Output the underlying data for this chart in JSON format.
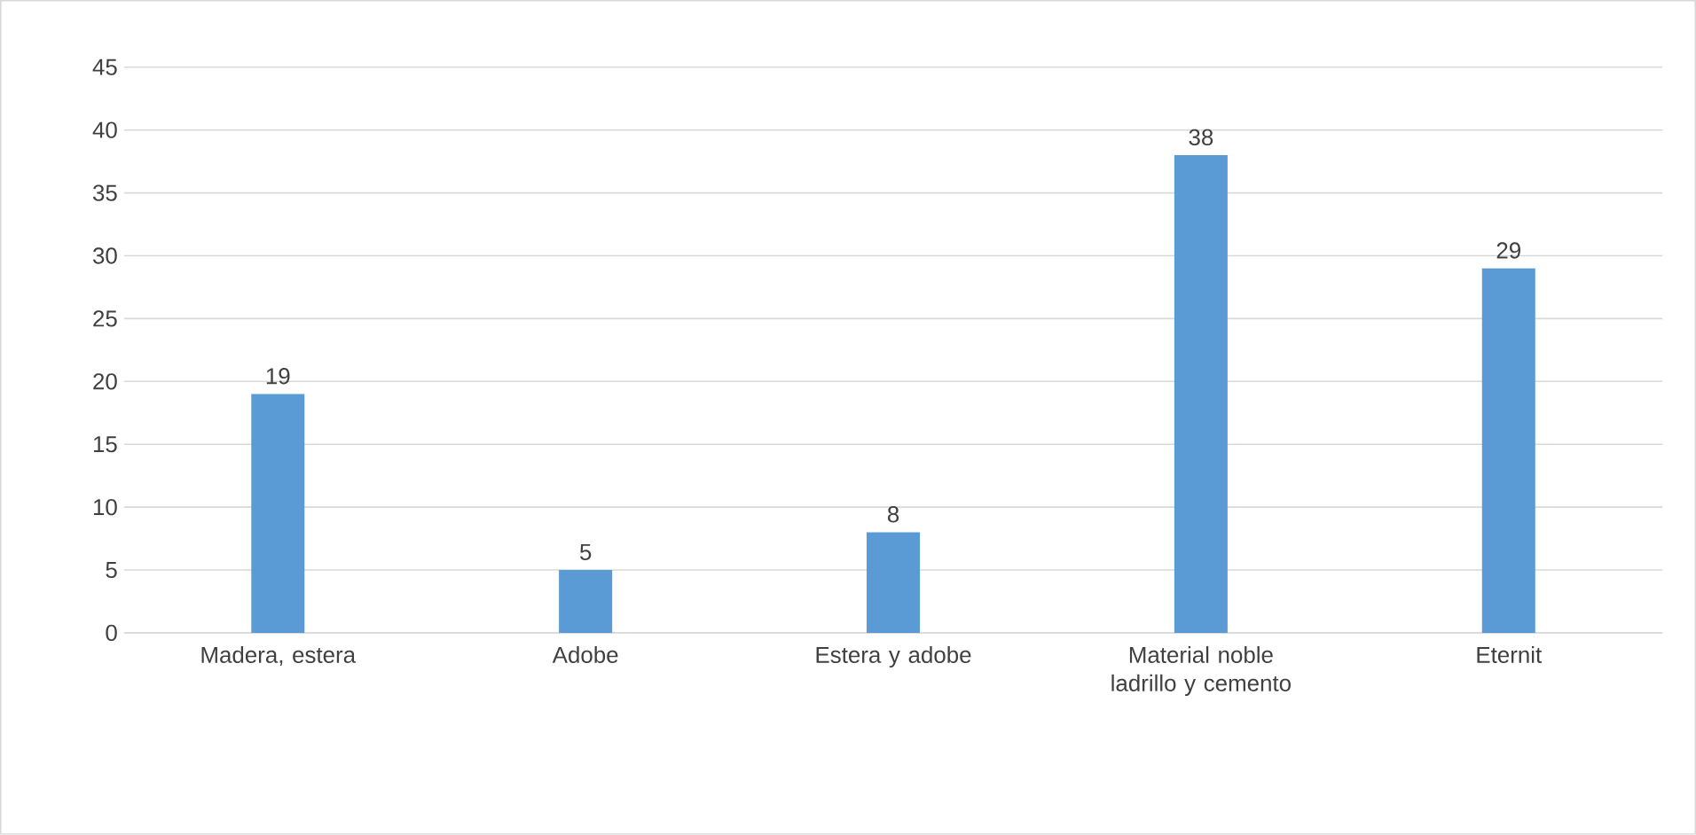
{
  "chart_data": {
    "type": "bar",
    "categories": [
      "Madera, estera",
      "Adobe",
      "Estera y adobe",
      "Material noble ladrillo y cemento",
      "Eternit"
    ],
    "values": [
      19,
      5,
      8,
      38,
      29
    ],
    "color": "#5b9bd5",
    "ylim": [
      0,
      45
    ],
    "yticks": [
      0,
      5,
      10,
      15,
      20,
      25,
      30,
      35,
      40,
      45
    ],
    "grid": "y",
    "data_labels": true
  }
}
